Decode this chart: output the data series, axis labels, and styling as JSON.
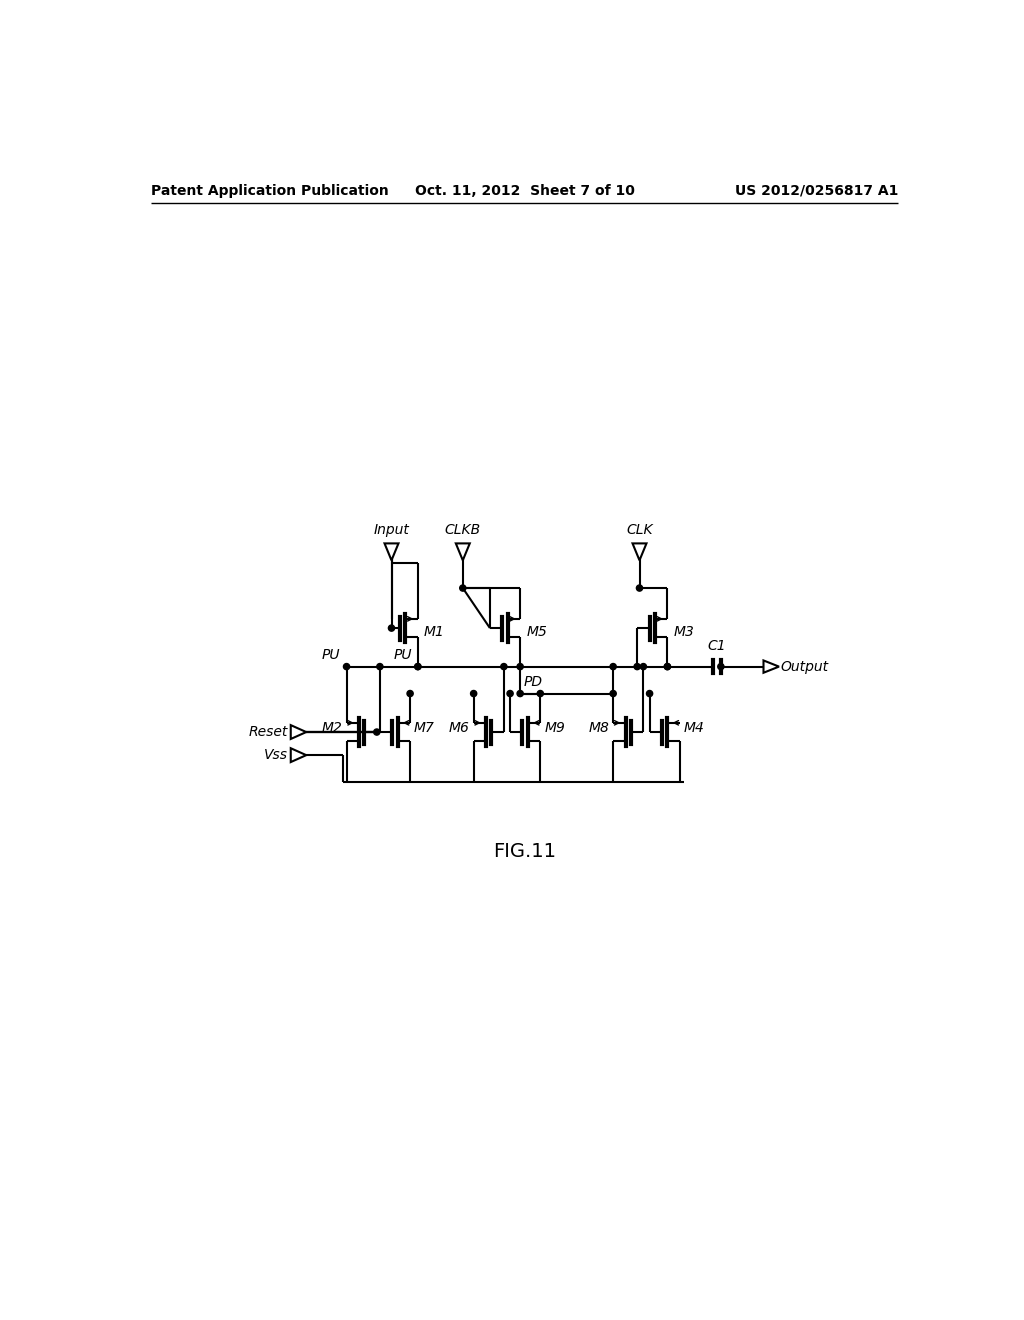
{
  "title": "FIG.11",
  "header_left": "Patent Application Publication",
  "header_center": "Oct. 11, 2012  Sheet 7 of 10",
  "header_right": "US 2012/0256817 A1",
  "background_color": "#ffffff",
  "fig_width": 10.24,
  "fig_height": 13.2
}
